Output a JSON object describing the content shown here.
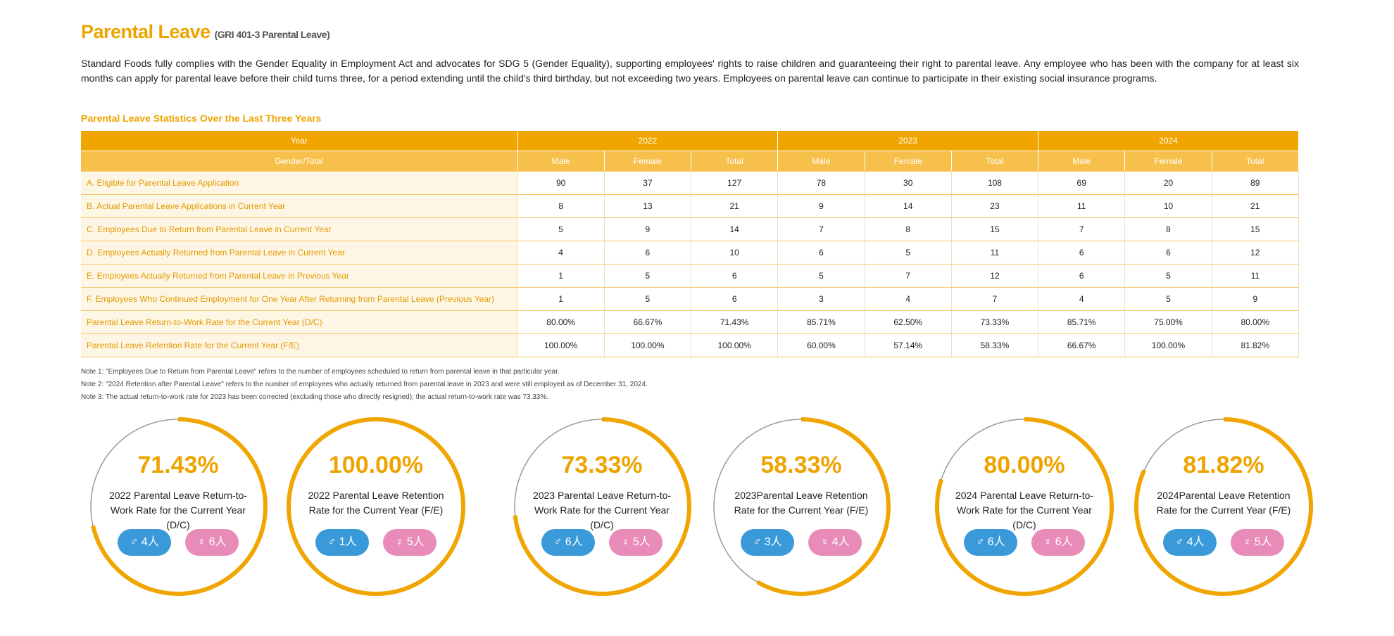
{
  "header": {
    "title": "Parental Leave",
    "reference": "(GRI 401-3 Parental Leave)"
  },
  "intro": "Standard Foods fully complies with the Gender Equality in Employment Act and advocates for SDG 5 (Gender Equality), supporting employees' rights to raise children and guaranteeing their right to parental leave. Any employee who has been with the company for at least six months can apply for parental leave before their child turns three, for a period extending until the child's third birthday, but not exceeding two years. Employees on parental leave can continue to participate in their existing social insurance programs.",
  "table": {
    "caption": "Parental Leave Statistics Over the Last Three Years",
    "year_header": "Year",
    "years": [
      "2022",
      "2023",
      "2024"
    ],
    "sub_header": [
      "Gender/Total",
      "Male",
      "Female",
      "Total",
      "Male",
      "Female",
      "Total",
      "Male",
      "Female",
      "Total"
    ],
    "rows": [
      [
        "A. Eligible for Parental Leave Application",
        "90",
        "37",
        "127",
        "78",
        "30",
        "108",
        "69",
        "20",
        "89"
      ],
      [
        "B. Actual Parental Leave Applications in Current Year",
        "8",
        "13",
        "21",
        "9",
        "14",
        "23",
        "11",
        "10",
        "21"
      ],
      [
        "C. Employees Due to Return from Parental Leave in Current Year",
        "5",
        "9",
        "14",
        "7",
        "8",
        "15",
        "7",
        "8",
        "15"
      ],
      [
        "D. Employees Actually Returned from Parental Leave in Current Year",
        "4",
        "6",
        "10",
        "6",
        "5",
        "11",
        "6",
        "6",
        "12"
      ],
      [
        "E. Employees Actually Returned from Parental Leave in Previous Year",
        "1",
        "5",
        "6",
        "5",
        "7",
        "12",
        "6",
        "5",
        "11"
      ],
      [
        "F. Employees Who Continued Employment for One Year After Returning from Parental Leave (Previous Year)",
        "1",
        "5",
        "6",
        "3",
        "4",
        "7",
        "4",
        "5",
        "9"
      ],
      [
        "Parental Leave Return-to-Work Rate for the Current Year (D/C)",
        "80.00%",
        "66.67%",
        "71.43%",
        "85.71%",
        "62.50%",
        "73.33%",
        "85.71%",
        "75.00%",
        "80.00%"
      ],
      [
        "Parental Leave Retention Rate for the Current Year (F/E)",
        "100.00%",
        "100.00%",
        "100.00%",
        "60.00%",
        "57.14%",
        "58.33%",
        "66.67%",
        "100.00%",
        "81.82%"
      ]
    ]
  },
  "notes": [
    "Note 1: \"Employees Due to Return from Parental Leave\" refers to the number of employees scheduled to return from parental leave in that particular year.",
    "Note 2: \"2024 Retention after Parental Leave\" refers to the number of employees who actually returned from parental leave in 2023 and were still employed as of December 31, 2024.",
    "Note 3: The actual return-to-work rate for 2023 has been corrected (excluding those who directly resigned); the actual return-to-work rate was 73.33%."
  ],
  "gauges": [
    {
      "value": 71.43,
      "value_label": "71.43%",
      "title": "2022 Parental Leave Return-to-Work Rate for the Current Year (D/C)",
      "male": "♂ 4人",
      "female": "♀ 6人"
    },
    {
      "value": 100,
      "value_label": "100.00%",
      "title": "2022 Parental Leave Retention Rate for the Current Year (F/E)",
      "male": "♂ 1人",
      "female": "♀ 5人"
    },
    {
      "value": 73.33,
      "value_label": "73.33%",
      "title": "2023 Parental Leave Return-to-Work Rate for the Current Year (D/C)",
      "male": "♂ 6人",
      "female": "♀ 5人"
    },
    {
      "value": 58.33,
      "value_label": "58.33%",
      "title": "2023Parental Leave Retention Rate for the Current Year (F/E)",
      "male": "♂ 3人",
      "female": "♀ 4人"
    },
    {
      "value": 80,
      "value_label": "80.00%",
      "title": "2024 Parental Leave Return-to-Work Rate for the Current Year (D/C)",
      "male": "♂ 6人",
      "female": "♀ 6人"
    },
    {
      "value": 81.82,
      "value_label": "81.82%",
      "title": "2024Parental Leave Retention Rate for the Current Year (F/E)",
      "male": "♂ 4人",
      "female": "♀ 5人"
    }
  ]
}
